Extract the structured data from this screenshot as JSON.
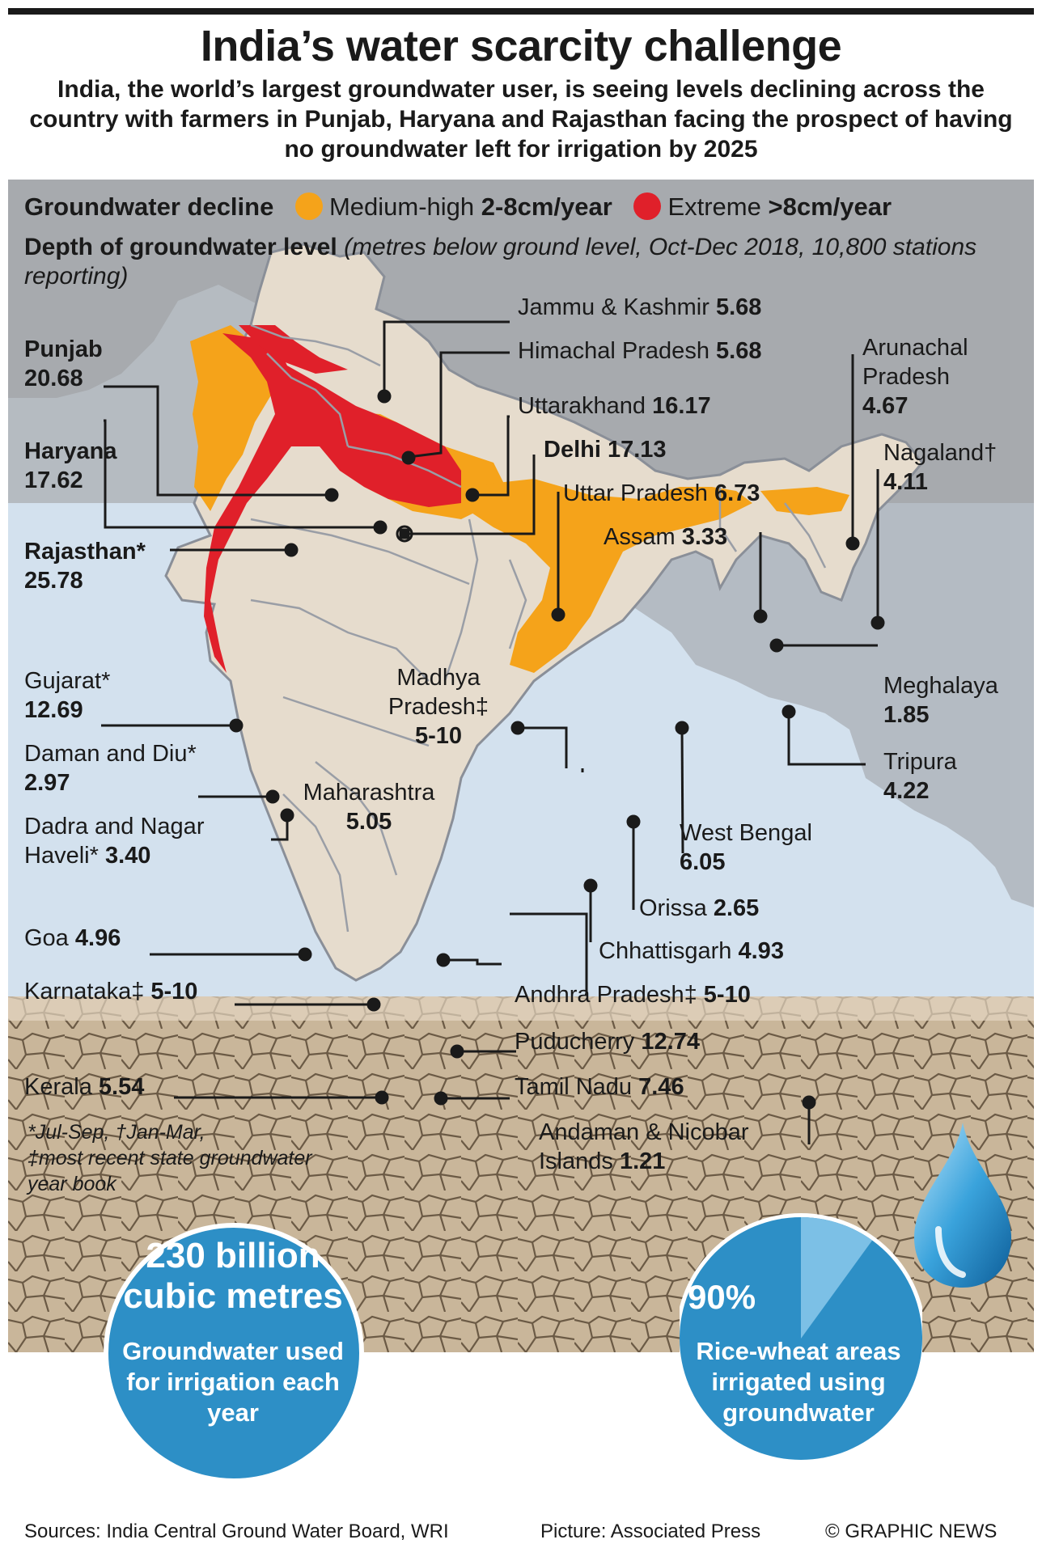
{
  "title": "India’s water scarcity challenge",
  "subtitle": "India, the world’s largest groundwater user, is seeing levels declining across the country with farmers in Punjab, Haryana and Rajasthan facing the prospect of having no groundwater left for irrigation by 2025",
  "legend": {
    "heading": "Groundwater decline",
    "medium_label": "Medium-high",
    "medium_value": "2-8cm/year",
    "medium_color": "#f5a31a",
    "extreme_label": "Extreme",
    "extreme_value": ">8cm/year",
    "extreme_color": "#e0202a"
  },
  "depth_heading": "Depth of groundwater level",
  "depth_note": "(metres below ground level, Oct-Dec 2018, 10,800 stations reporting)",
  "states": {
    "jk": {
      "name": "Jammu & Kashmir",
      "value": "5.68"
    },
    "hp": {
      "name": "Himachal Pradesh",
      "value": "5.68"
    },
    "uk": {
      "name": "Uttarakhand",
      "value": "16.17"
    },
    "delhi": {
      "name": "Delhi",
      "value": "17.13"
    },
    "up": {
      "name": "Uttar Pradesh",
      "value": "6.73"
    },
    "assam": {
      "name": "Assam",
      "value": "3.33"
    },
    "arunachal": {
      "name": "Arunachal Pradesh",
      "value": "4.67"
    },
    "nagaland": {
      "name": "Nagaland†",
      "value": "4.11"
    },
    "meghalaya": {
      "name": "Meghalaya",
      "value": "1.85"
    },
    "tripura": {
      "name": "Tripura",
      "value": "4.22"
    },
    "punjab": {
      "name": "Punjab",
      "value": "20.68"
    },
    "haryana": {
      "name": "Haryana",
      "value": "17.62"
    },
    "rajasthan": {
      "name": "Rajasthan*",
      "value": "25.78"
    },
    "gujarat": {
      "name": "Gujarat*",
      "value": "12.69"
    },
    "daman": {
      "name": "Daman and Diu*",
      "value": "2.97"
    },
    "dadra": {
      "name": "Dadra and Nagar Haveli*",
      "value": "3.40"
    },
    "mp": {
      "name": "Madhya Pradesh‡",
      "value": "5-10"
    },
    "maharashtra": {
      "name": "Maharashtra",
      "value": "5.05"
    },
    "wb": {
      "name": "West Bengal",
      "value": "6.05"
    },
    "orissa": {
      "name": "Orissa",
      "value": "2.65"
    },
    "chhattisgarh": {
      "name": "Chhattisgarh",
      "value": "4.93"
    },
    "goa": {
      "name": "Goa",
      "value": "4.96"
    },
    "karnataka": {
      "name": "Karnataka‡",
      "value": "5-10"
    },
    "ap": {
      "name": "Andhra Pradesh‡",
      "value": "5-10"
    },
    "puducherry": {
      "name": "Puducherry",
      "value": "12.74"
    },
    "kerala": {
      "name": "Kerala",
      "value": "5.54"
    },
    "tn": {
      "name": "Tamil Nadu",
      "value": "7.46"
    },
    "andaman": {
      "name": "Andaman & Nicobar Islands",
      "value": "1.21"
    }
  },
  "footnotes": [
    "*Jul-Sep, †Jan-Mar,",
    "‡most recent state groundwater",
    "year book"
  ],
  "stat_left": {
    "big": "230 billion cubic metres",
    "small": "Groundwater used for irrigation each year"
  },
  "stat_right": {
    "big": "90%",
    "small": "Rice-wheat areas irrigated using groundwater",
    "share": 0.9
  },
  "footer": {
    "sources": "Sources: India Central Ground Water Board, WRI",
    "picture": "Picture: Associated Press",
    "credit": "© GRAPHIC NEWS"
  }
}
